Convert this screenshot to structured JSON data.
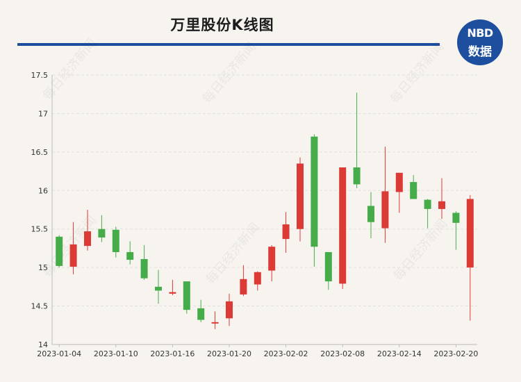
{
  "header": {
    "title": "万里股份K线图"
  },
  "logo": {
    "line1": "NBD",
    "line2": "数据",
    "color": "#1d4f9e"
  },
  "watermark": {
    "text": "每日经济新闻"
  },
  "colors": {
    "up": "#dc3a34",
    "down": "#46ac49",
    "grid": "#e2dfda",
    "axis": "#bdbdbd",
    "rule": "#1c4e9d"
  },
  "chart_data": {
    "type": "candlestick",
    "title": "万里股份K线图",
    "ylim": [
      14,
      17.5
    ],
    "yticks": [
      "14",
      "14.5",
      "15",
      "15.5",
      "16",
      "16.5",
      "17",
      "17.5"
    ],
    "grid": "horizontal dashed",
    "x_tick_labels": [
      "2023-01-04",
      "2023-01-10",
      "2023-01-16",
      "2023-01-20",
      "2023-02-02",
      "2023-02-08",
      "2023-02-14",
      "2023-02-20"
    ],
    "x_tick_indices": [
      0,
      4,
      8,
      12,
      16,
      20,
      24,
      28
    ],
    "candles": [
      {
        "open": 15.4,
        "high": 15.42,
        "low": 15.0,
        "close": 15.02
      },
      {
        "open": 15.01,
        "high": 15.59,
        "low": 14.91,
        "close": 15.3
      },
      {
        "open": 15.28,
        "high": 15.75,
        "low": 15.22,
        "close": 15.47
      },
      {
        "open": 15.5,
        "high": 15.68,
        "low": 15.33,
        "close": 15.39
      },
      {
        "open": 15.49,
        "high": 15.53,
        "low": 15.13,
        "close": 15.2
      },
      {
        "open": 15.2,
        "high": 15.34,
        "low": 15.04,
        "close": 15.1
      },
      {
        "open": 15.11,
        "high": 15.29,
        "low": 14.84,
        "close": 14.86
      },
      {
        "open": 14.75,
        "high": 14.97,
        "low": 14.53,
        "close": 14.7
      },
      {
        "open": 14.66,
        "high": 14.84,
        "low": 14.64,
        "close": 14.68
      },
      {
        "open": 14.82,
        "high": 14.82,
        "low": 14.4,
        "close": 14.45
      },
      {
        "open": 14.47,
        "high": 14.58,
        "low": 14.29,
        "close": 14.32
      },
      {
        "open": 14.28,
        "high": 14.43,
        "low": 14.2,
        "close": 14.29
      },
      {
        "open": 14.34,
        "high": 14.66,
        "low": 14.24,
        "close": 14.56
      },
      {
        "open": 14.65,
        "high": 15.03,
        "low": 14.63,
        "close": 14.85
      },
      {
        "open": 14.78,
        "high": 14.95,
        "low": 14.7,
        "close": 14.94
      },
      {
        "open": 14.96,
        "high": 15.29,
        "low": 14.82,
        "close": 15.27
      },
      {
        "open": 15.37,
        "high": 15.72,
        "low": 15.19,
        "close": 15.56
      },
      {
        "open": 15.5,
        "high": 16.43,
        "low": 15.34,
        "close": 16.35
      },
      {
        "open": 16.7,
        "high": 16.73,
        "low": 15.01,
        "close": 15.27
      },
      {
        "open": 15.2,
        "high": 15.2,
        "low": 14.71,
        "close": 14.82
      },
      {
        "open": 14.79,
        "high": 16.3,
        "low": 14.72,
        "close": 16.3
      },
      {
        "open": 16.3,
        "high": 17.27,
        "low": 16.03,
        "close": 16.08
      },
      {
        "open": 15.8,
        "high": 15.98,
        "low": 15.38,
        "close": 15.59
      },
      {
        "open": 15.51,
        "high": 16.57,
        "low": 15.32,
        "close": 15.99
      },
      {
        "open": 15.98,
        "high": 16.23,
        "low": 15.71,
        "close": 16.23
      },
      {
        "open": 16.11,
        "high": 16.2,
        "low": 15.89,
        "close": 15.89
      },
      {
        "open": 15.88,
        "high": 15.89,
        "low": 15.51,
        "close": 15.76
      },
      {
        "open": 15.76,
        "high": 16.16,
        "low": 15.63,
        "close": 15.86
      },
      {
        "open": 15.71,
        "high": 15.73,
        "low": 15.23,
        "close": 15.58
      },
      {
        "open": 15.0,
        "high": 15.94,
        "low": 14.31,
        "close": 15.89
      }
    ]
  }
}
